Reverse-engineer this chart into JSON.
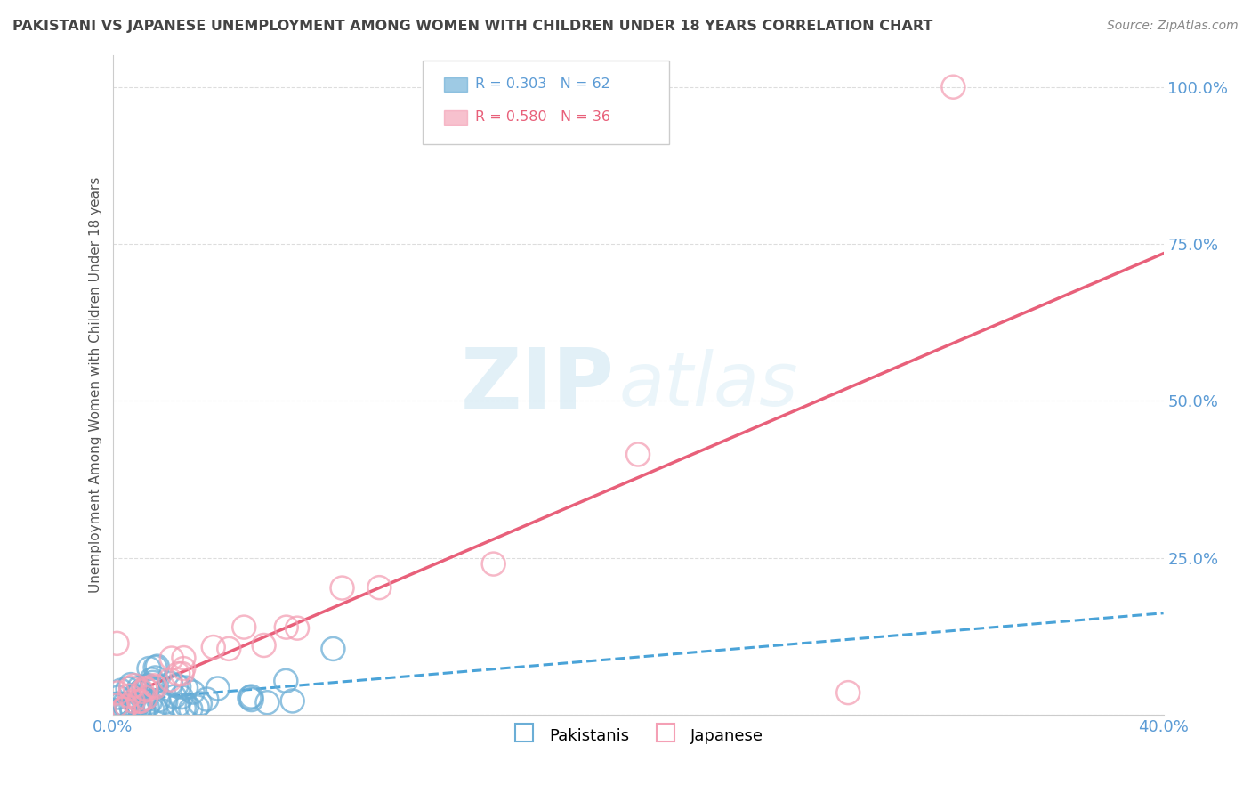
{
  "title": "PAKISTANI VS JAPANESE UNEMPLOYMENT AMONG WOMEN WITH CHILDREN UNDER 18 YEARS CORRELATION CHART",
  "source": "Source: ZipAtlas.com",
  "ylabel": "Unemployment Among Women with Children Under 18 years",
  "xlim": [
    0.0,
    0.4
  ],
  "ylim": [
    0.0,
    1.05
  ],
  "xticks": [
    0.0,
    0.05,
    0.1,
    0.15,
    0.2,
    0.25,
    0.3,
    0.35,
    0.4
  ],
  "yticks": [
    0.0,
    0.25,
    0.5,
    0.75,
    1.0
  ],
  "pakistani_color": "#6baed6",
  "japanese_color": "#f4a0b5",
  "trend_pak_color": "#4aa3d8",
  "trend_jap_color": "#e8607a",
  "grid_color": "#dddddd",
  "tick_color": "#5b9bd5",
  "title_color": "#444444",
  "source_color": "#888888",
  "pakistani_N": 62,
  "japanese_N": 36
}
